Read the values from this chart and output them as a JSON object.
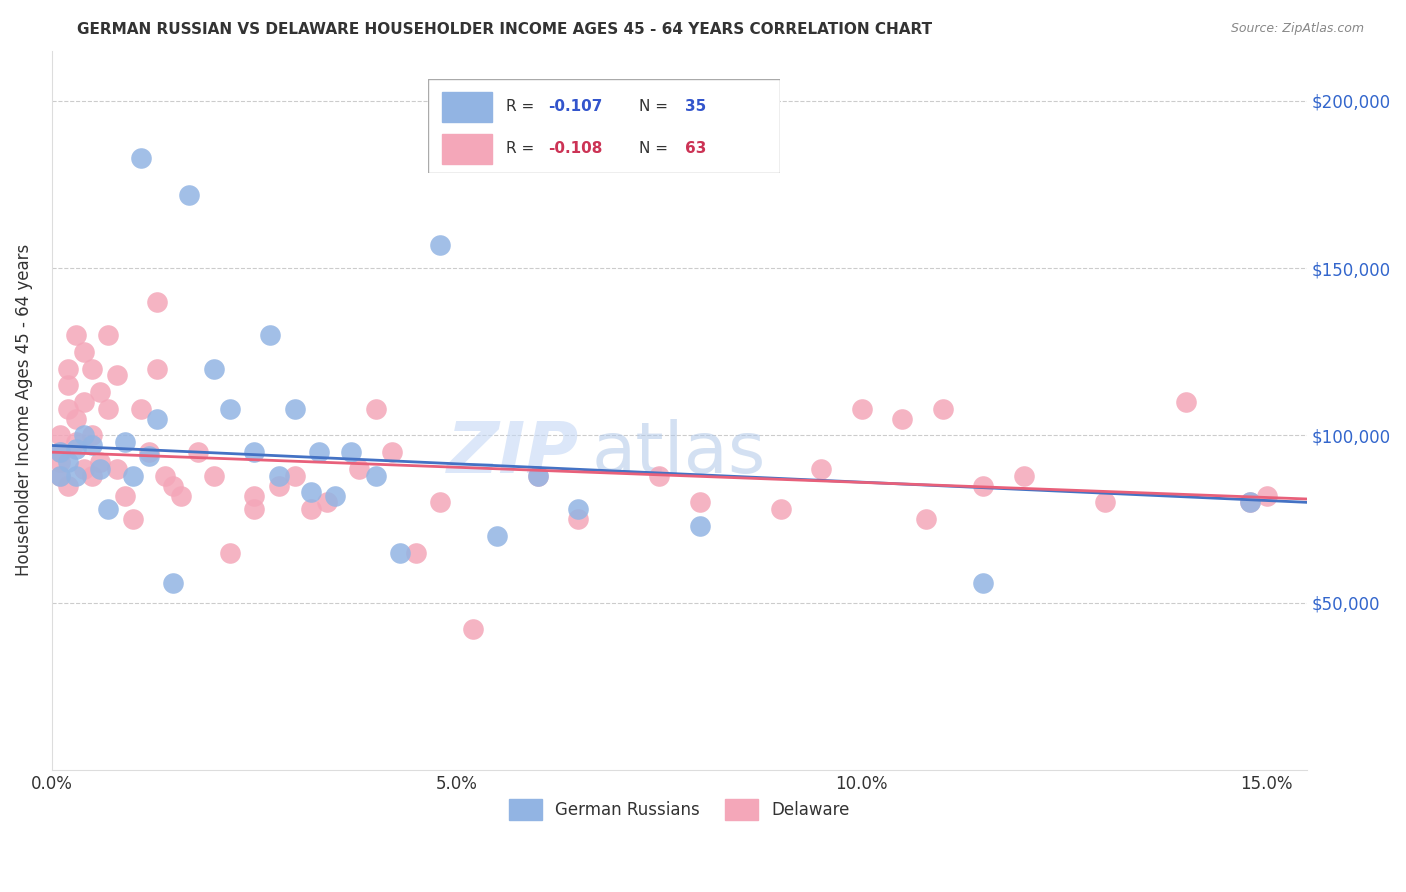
{
  "title": "GERMAN RUSSIAN VS DELAWARE HOUSEHOLDER INCOME AGES 45 - 64 YEARS CORRELATION CHART",
  "source": "Source: ZipAtlas.com",
  "ylabel": "Householder Income Ages 45 - 64 years",
  "xlabel_ticks": [
    "0.0%",
    "5.0%",
    "10.0%",
    "15.0%"
  ],
  "xlabel_tick_vals": [
    0.0,
    0.05,
    0.1,
    0.15
  ],
  "ylabel_ticks": [
    "$50,000",
    "$100,000",
    "$150,000",
    "$200,000"
  ],
  "ylabel_tick_vals": [
    50000,
    100000,
    150000,
    200000
  ],
  "xlim": [
    0.0,
    0.155
  ],
  "ylim": [
    0,
    215000
  ],
  "blue_color": "#92b4e3",
  "pink_color": "#f4a7b9",
  "blue_line_color": "#4472c4",
  "pink_line_color": "#e8607a",
  "watermark_zip": "ZIP",
  "watermark_atlas": "atlas",
  "gr_R": "-0.107",
  "gr_N": "35",
  "de_R": "-0.108",
  "de_N": "63",
  "german_russian_x": [
    0.001,
    0.001,
    0.002,
    0.003,
    0.003,
    0.004,
    0.005,
    0.006,
    0.007,
    0.009,
    0.01,
    0.011,
    0.012,
    0.013,
    0.015,
    0.017,
    0.02,
    0.022,
    0.025,
    0.027,
    0.028,
    0.03,
    0.032,
    0.033,
    0.035,
    0.037,
    0.04,
    0.043,
    0.048,
    0.055,
    0.06,
    0.065,
    0.08,
    0.115,
    0.148
  ],
  "german_russian_y": [
    95000,
    88000,
    92000,
    96000,
    88000,
    100000,
    97000,
    90000,
    78000,
    98000,
    88000,
    183000,
    94000,
    105000,
    56000,
    172000,
    120000,
    108000,
    95000,
    130000,
    88000,
    108000,
    83000,
    95000,
    82000,
    95000,
    88000,
    65000,
    157000,
    70000,
    88000,
    78000,
    73000,
    56000,
    80000
  ],
  "delaware_x": [
    0.001,
    0.001,
    0.001,
    0.001,
    0.002,
    0.002,
    0.002,
    0.002,
    0.003,
    0.003,
    0.003,
    0.004,
    0.004,
    0.004,
    0.005,
    0.005,
    0.005,
    0.006,
    0.006,
    0.007,
    0.007,
    0.008,
    0.008,
    0.009,
    0.01,
    0.011,
    0.012,
    0.013,
    0.013,
    0.014,
    0.015,
    0.016,
    0.018,
    0.02,
    0.022,
    0.025,
    0.025,
    0.028,
    0.03,
    0.032,
    0.034,
    0.038,
    0.04,
    0.042,
    0.045,
    0.048,
    0.052,
    0.06,
    0.065,
    0.075,
    0.08,
    0.09,
    0.095,
    0.1,
    0.105,
    0.108,
    0.11,
    0.115,
    0.12,
    0.13,
    0.14,
    0.148,
    0.15
  ],
  "delaware_y": [
    100000,
    92000,
    88000,
    95000,
    120000,
    108000,
    85000,
    115000,
    130000,
    105000,
    98000,
    125000,
    110000,
    90000,
    120000,
    100000,
    88000,
    113000,
    92000,
    130000,
    108000,
    118000,
    90000,
    82000,
    75000,
    108000,
    95000,
    140000,
    120000,
    88000,
    85000,
    82000,
    95000,
    88000,
    65000,
    82000,
    78000,
    85000,
    88000,
    78000,
    80000,
    90000,
    108000,
    95000,
    65000,
    80000,
    42000,
    88000,
    75000,
    88000,
    80000,
    78000,
    90000,
    108000,
    105000,
    75000,
    108000,
    85000,
    88000,
    80000,
    110000,
    80000,
    82000
  ]
}
